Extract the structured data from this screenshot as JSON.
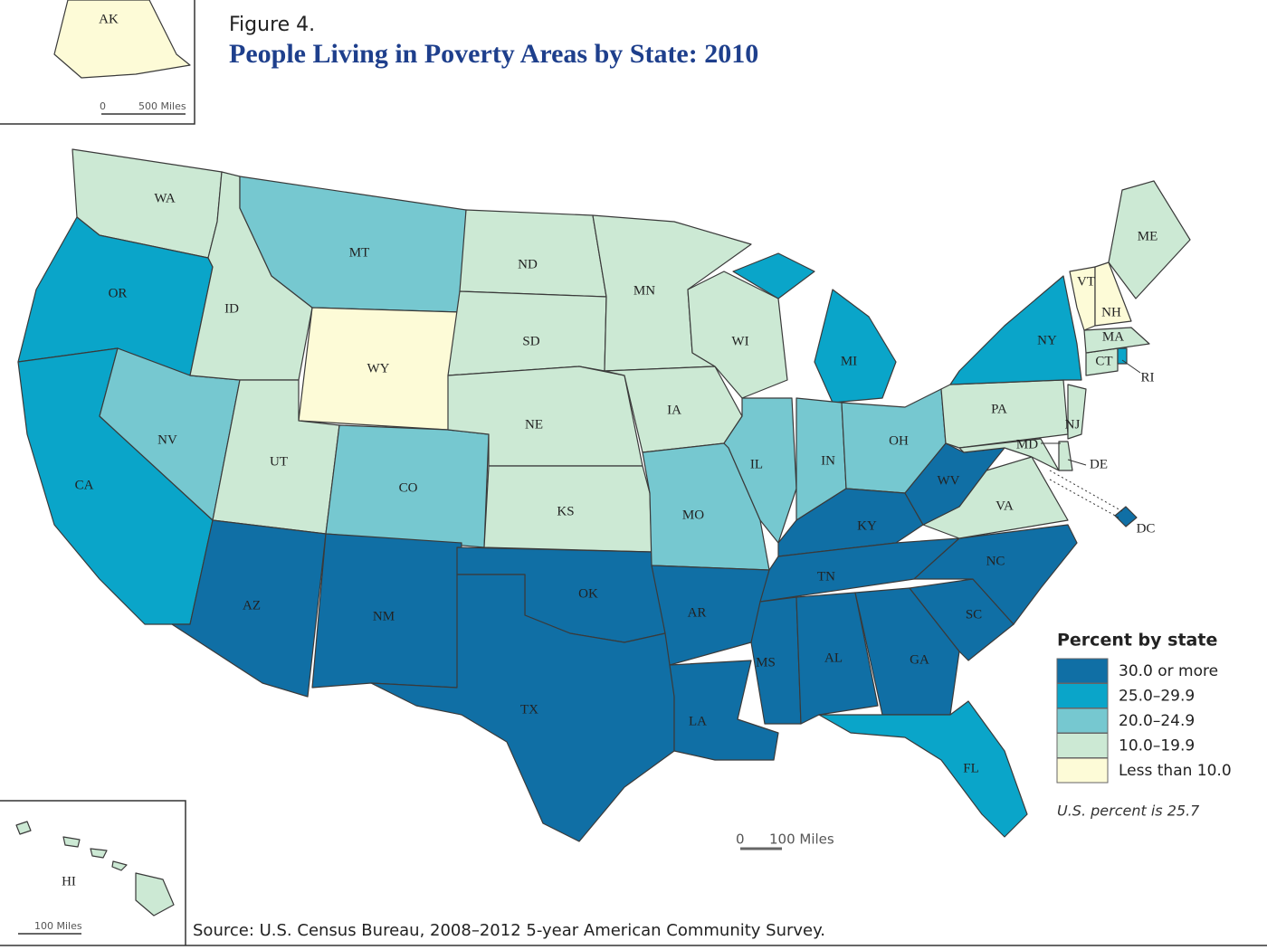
{
  "figure_label": "Figure 4.",
  "title": "People Living in Poverty Areas by State: 2010",
  "legend": {
    "title": "Percent by state",
    "classes": [
      {
        "label": "30.0 or more",
        "color": "#106fa5"
      },
      {
        "label": "25.0–29.9",
        "color": "#0aa5c9"
      },
      {
        "label": "20.0–24.9",
        "color": "#76c8d0"
      },
      {
        "label": "10.0–19.9",
        "color": "#cce9d4"
      },
      {
        "label": "Less than 10.0",
        "color": "#fdfbd7"
      }
    ]
  },
  "note": "U.S. percent is 25.7",
  "source": "Source: U.S. Census Bureau, 2008–2012 5-year American Community Survey.",
  "scale_bars": {
    "alaska": {
      "zero": "0",
      "label": "500 Miles"
    },
    "main": {
      "zero": "0",
      "label": "100 Miles"
    },
    "hawaii": {
      "label": "100 Miles"
    }
  },
  "states": [
    {
      "abbr": "WA",
      "class": 3
    },
    {
      "abbr": "OR",
      "class": 1
    },
    {
      "abbr": "CA",
      "class": 1
    },
    {
      "abbr": "NV",
      "class": 2
    },
    {
      "abbr": "ID",
      "class": 3
    },
    {
      "abbr": "MT",
      "class": 2
    },
    {
      "abbr": "WY",
      "class": 4
    },
    {
      "abbr": "UT",
      "class": 3
    },
    {
      "abbr": "CO",
      "class": 2
    },
    {
      "abbr": "AZ",
      "class": 0
    },
    {
      "abbr": "NM",
      "class": 0
    },
    {
      "abbr": "ND",
      "class": 3
    },
    {
      "abbr": "SD",
      "class": 3
    },
    {
      "abbr": "NE",
      "class": 3
    },
    {
      "abbr": "KS",
      "class": 3
    },
    {
      "abbr": "OK",
      "class": 0
    },
    {
      "abbr": "TX",
      "class": 0
    },
    {
      "abbr": "MN",
      "class": 3
    },
    {
      "abbr": "IA",
      "class": 3
    },
    {
      "abbr": "MO",
      "class": 2
    },
    {
      "abbr": "AR",
      "class": 0
    },
    {
      "abbr": "LA",
      "class": 0
    },
    {
      "abbr": "WI",
      "class": 3
    },
    {
      "abbr": "IL",
      "class": 2
    },
    {
      "abbr": "MI",
      "class": 1
    },
    {
      "abbr": "IN",
      "class": 2
    },
    {
      "abbr": "OH",
      "class": 2
    },
    {
      "abbr": "KY",
      "class": 0
    },
    {
      "abbr": "TN",
      "class": 0
    },
    {
      "abbr": "MS",
      "class": 0
    },
    {
      "abbr": "AL",
      "class": 0
    },
    {
      "abbr": "GA",
      "class": 0
    },
    {
      "abbr": "FL",
      "class": 1
    },
    {
      "abbr": "SC",
      "class": 0
    },
    {
      "abbr": "NC",
      "class": 0
    },
    {
      "abbr": "VA",
      "class": 3
    },
    {
      "abbr": "WV",
      "class": 0
    },
    {
      "abbr": "PA",
      "class": 3
    },
    {
      "abbr": "NY",
      "class": 1
    },
    {
      "abbr": "MD",
      "class": 3
    },
    {
      "abbr": "DE",
      "class": 3
    },
    {
      "abbr": "NJ",
      "class": 3
    },
    {
      "abbr": "CT",
      "class": 3
    },
    {
      "abbr": "RI",
      "class": 1
    },
    {
      "abbr": "MA",
      "class": 3
    },
    {
      "abbr": "VT",
      "class": 4
    },
    {
      "abbr": "NH",
      "class": 4
    },
    {
      "abbr": "ME",
      "class": 3
    },
    {
      "abbr": "DC",
      "class": 0
    },
    {
      "abbr": "AK",
      "class": 4
    },
    {
      "abbr": "HI",
      "class": 3
    }
  ]
}
